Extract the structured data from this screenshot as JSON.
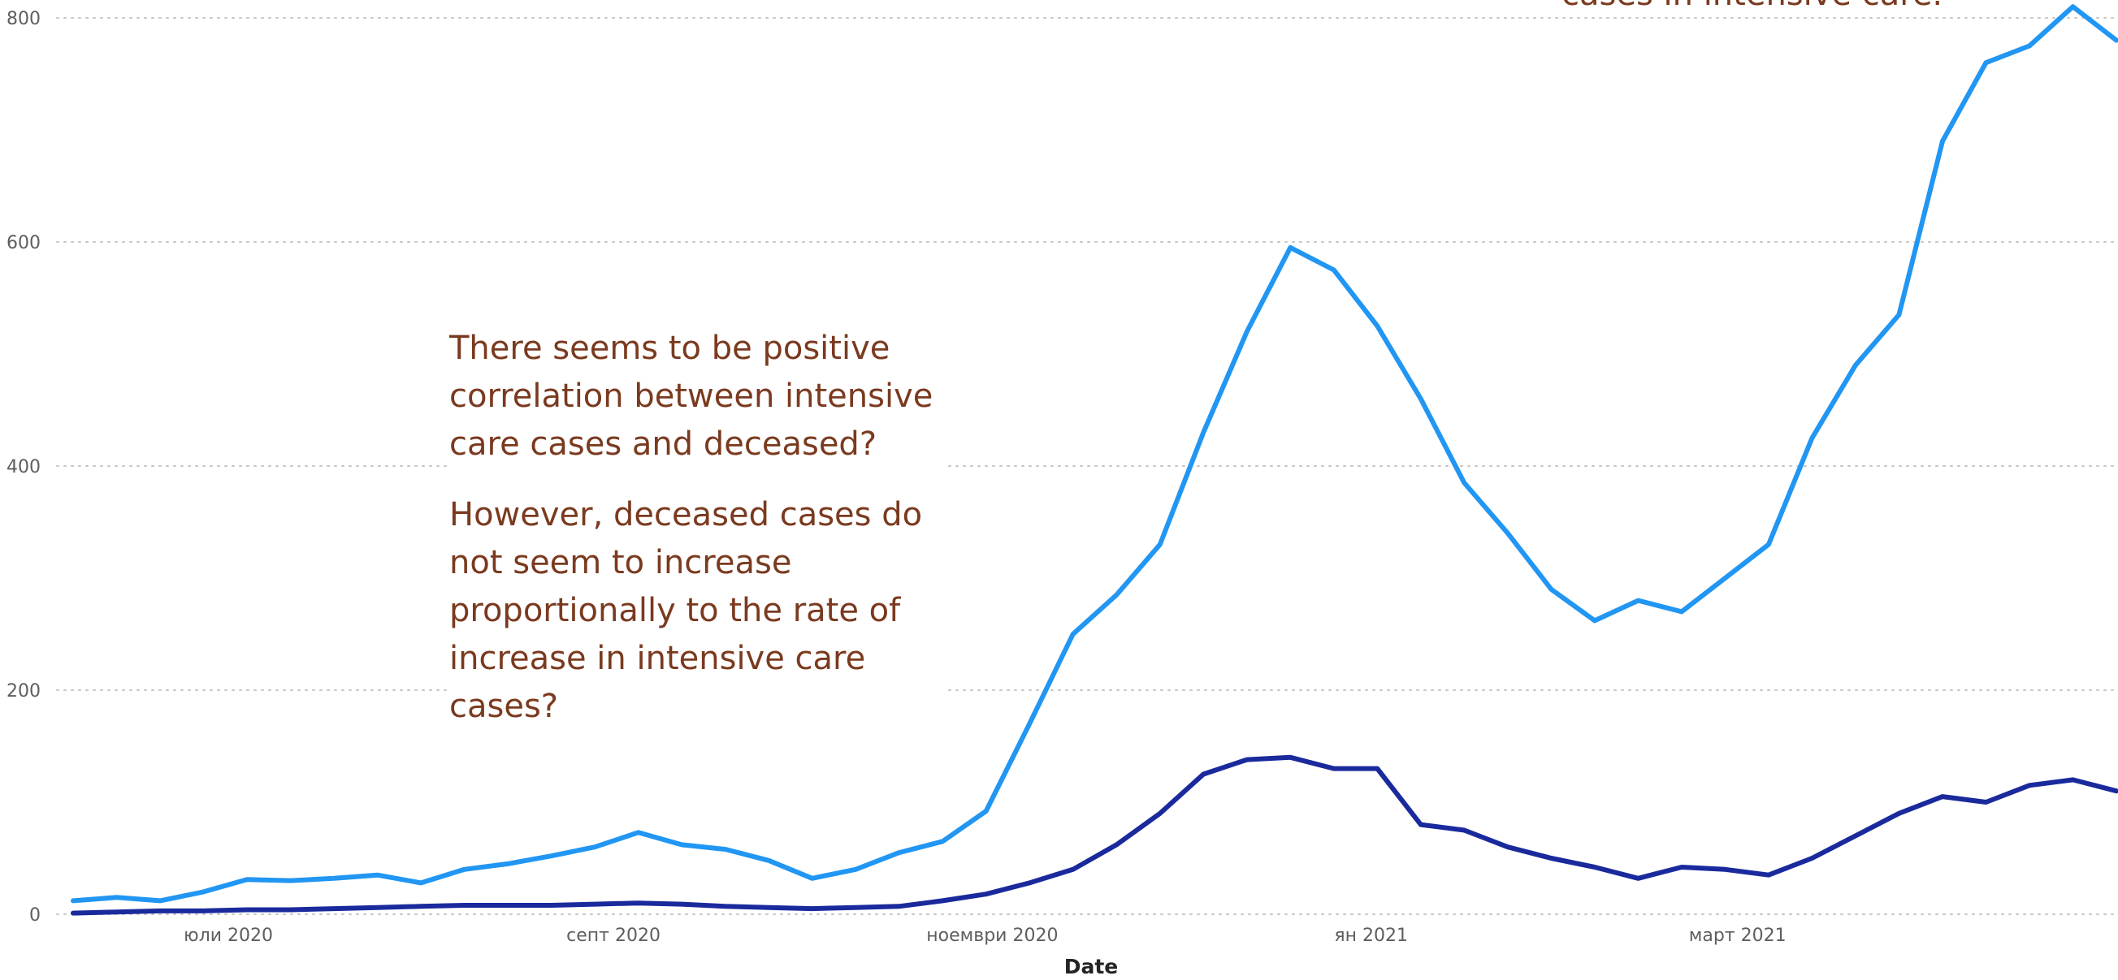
{
  "chart_data": {
    "type": "line",
    "xlabel": "Date",
    "ylabel": "",
    "ylim": [
      0,
      800
    ],
    "yticks": [
      0,
      200,
      400,
      600,
      800
    ],
    "xticks": [
      {
        "date": "2020-07-01",
        "label": "юли 2020"
      },
      {
        "date": "2020-09-01",
        "label": "септ 2020"
      },
      {
        "date": "2020-11-01",
        "label": "ноември 2020"
      },
      {
        "date": "2021-01-01",
        "label": "ян 2021"
      },
      {
        "date": "2021-03-01",
        "label": "март 2021"
      }
    ],
    "x_range": [
      "2020-06-06",
      "2021-05-01"
    ],
    "grid": true,
    "colors": {
      "intensive_care": "#2196f3",
      "deceased": "#1a2a9c",
      "annotation": "#7a3a1f"
    },
    "series": [
      {
        "id": "intensive_care",
        "x": [
          "2020-06-06",
          "2020-06-13",
          "2020-06-20",
          "2020-06-27",
          "2020-07-04",
          "2020-07-11",
          "2020-07-18",
          "2020-07-25",
          "2020-08-01",
          "2020-08-08",
          "2020-08-15",
          "2020-08-22",
          "2020-08-29",
          "2020-09-05",
          "2020-09-12",
          "2020-09-19",
          "2020-09-26",
          "2020-10-03",
          "2020-10-10",
          "2020-10-17",
          "2020-10-24",
          "2020-10-31",
          "2020-11-07",
          "2020-11-14",
          "2020-11-21",
          "2020-11-28",
          "2020-12-05",
          "2020-12-12",
          "2020-12-19",
          "2020-12-26",
          "2021-01-02",
          "2021-01-09",
          "2021-01-16",
          "2021-01-23",
          "2021-01-30",
          "2021-02-06",
          "2021-02-13",
          "2021-02-20",
          "2021-02-27",
          "2021-03-06",
          "2021-03-13",
          "2021-03-20",
          "2021-03-27",
          "2021-04-03",
          "2021-04-10",
          "2021-04-17",
          "2021-04-24",
          "2021-05-01"
        ],
        "values": [
          12,
          15,
          12,
          20,
          31,
          30,
          32,
          35,
          28,
          40,
          45,
          52,
          60,
          73,
          62,
          58,
          48,
          32,
          40,
          55,
          65,
          92,
          170,
          250,
          285,
          330,
          430,
          520,
          595,
          575,
          525,
          460,
          385,
          340,
          290,
          262,
          280,
          270,
          300,
          330,
          425,
          490,
          535,
          690,
          760,
          775,
          810,
          780
        ]
      },
      {
        "id": "deceased",
        "x": [
          "2020-06-06",
          "2020-06-13",
          "2020-06-20",
          "2020-06-27",
          "2020-07-04",
          "2020-07-11",
          "2020-07-18",
          "2020-07-25",
          "2020-08-01",
          "2020-08-08",
          "2020-08-15",
          "2020-08-22",
          "2020-08-29",
          "2020-09-05",
          "2020-09-12",
          "2020-09-19",
          "2020-09-26",
          "2020-10-03",
          "2020-10-10",
          "2020-10-17",
          "2020-10-24",
          "2020-10-31",
          "2020-11-07",
          "2020-11-14",
          "2020-11-21",
          "2020-11-28",
          "2020-12-05",
          "2020-12-12",
          "2020-12-19",
          "2020-12-26",
          "2021-01-02",
          "2021-01-09",
          "2021-01-16",
          "2021-01-23",
          "2021-01-30",
          "2021-02-06",
          "2021-02-13",
          "2021-02-20",
          "2021-02-27",
          "2021-03-06",
          "2021-03-13",
          "2021-03-20",
          "2021-03-27",
          "2021-04-03",
          "2021-04-10",
          "2021-04-17",
          "2021-04-24",
          "2021-05-01"
        ],
        "values": [
          1,
          2,
          3,
          3,
          4,
          4,
          5,
          6,
          7,
          8,
          8,
          8,
          9,
          10,
          9,
          7,
          6,
          5,
          6,
          7,
          12,
          18,
          28,
          40,
          62,
          90,
          125,
          138,
          140,
          130,
          130,
          80,
          75,
          60,
          50,
          42,
          32,
          42,
          40,
          35,
          50,
          70,
          90,
          105,
          100,
          115,
          120,
          110
        ]
      }
    ],
    "annotations": {
      "main": [
        "There seems to be positive correlation between intensive care cases and deceased?",
        "However, deceased cases do not seem to increase proportionally to the rate of increase in intensive care cases?"
      ],
      "top": "cases in intensive care."
    }
  }
}
